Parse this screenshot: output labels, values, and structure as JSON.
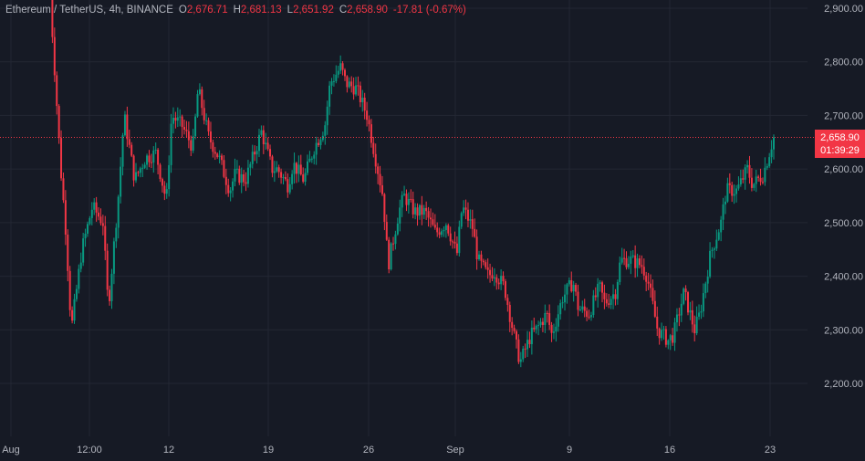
{
  "legend": {
    "symbol": "Ethereum / TetherUS, 4h, BINANCE",
    "open_label": "O",
    "open": "2,676.71",
    "high_label": "H",
    "high": "2,681.13",
    "low_label": "L",
    "low": "2,651.92",
    "close_label": "C",
    "close": "2,658.90",
    "change": "-17.81 (-0.67%)"
  },
  "price_badge": {
    "price": "2,658.90",
    "countdown": "01:39:29"
  },
  "colors": {
    "background": "#161a25",
    "grid": "#232733",
    "up": "#089981",
    "down": "#f23645",
    "text": "#b2b5be"
  },
  "chart_data": {
    "type": "candlestick",
    "interval": "4h",
    "ylim": [
      2150,
      2920
    ],
    "y_ticks": [
      "2,900.00",
      "2,800.00",
      "2,700.00",
      "2,600.00",
      "2,500.00",
      "2,400.00",
      "2,300.00",
      "2,200.00"
    ],
    "y_tick_values": [
      2900,
      2800,
      2700,
      2600,
      2500,
      2400,
      2300,
      2200
    ],
    "x_ticks": [
      "Aug",
      "12:00",
      "12",
      "19",
      "26",
      "Sep",
      "9",
      "16",
      "23"
    ],
    "last_price": 2658.9,
    "close_path": [
      [
        0,
        2920
      ],
      [
        2,
        2600
      ],
      [
        3,
        2480
      ],
      [
        4,
        2300
      ],
      [
        6,
        2450
      ],
      [
        8,
        2530
      ],
      [
        10,
        2500
      ],
      [
        11,
        2340
      ],
      [
        13,
        2560
      ],
      [
        14,
        2700
      ],
      [
        16,
        2580
      ],
      [
        18,
        2620
      ],
      [
        20,
        2630
      ],
      [
        22,
        2540
      ],
      [
        23,
        2700
      ],
      [
        25,
        2680
      ],
      [
        27,
        2640
      ],
      [
        28,
        2750
      ],
      [
        30,
        2660
      ],
      [
        32,
        2620
      ],
      [
        34,
        2560
      ],
      [
        35,
        2590
      ],
      [
        37,
        2580
      ],
      [
        39,
        2640
      ],
      [
        40,
        2670
      ],
      [
        42,
        2600
      ],
      [
        43,
        2600
      ],
      [
        45,
        2570
      ],
      [
        46,
        2610
      ],
      [
        48,
        2580
      ],
      [
        50,
        2640
      ],
      [
        52,
        2680
      ],
      [
        53,
        2760
      ],
      [
        55,
        2790
      ],
      [
        56,
        2760
      ],
      [
        58,
        2750
      ],
      [
        60,
        2700
      ],
      [
        61,
        2650
      ],
      [
        63,
        2550
      ],
      [
        64,
        2420
      ],
      [
        66,
        2520
      ],
      [
        67,
        2550
      ],
      [
        69,
        2520
      ],
      [
        71,
        2520
      ],
      [
        73,
        2480
      ],
      [
        75,
        2500
      ],
      [
        77,
        2440
      ],
      [
        78,
        2530
      ],
      [
        80,
        2490
      ],
      [
        81,
        2430
      ],
      [
        83,
        2400
      ],
      [
        84,
        2410
      ],
      [
        86,
        2380
      ],
      [
        88,
        2280
      ],
      [
        89,
        2240
      ],
      [
        91,
        2290
      ],
      [
        92,
        2300
      ],
      [
        94,
        2330
      ],
      [
        95,
        2290
      ],
      [
        97,
        2360
      ],
      [
        99,
        2390
      ],
      [
        100,
        2340
      ],
      [
        102,
        2330
      ],
      [
        104,
        2380
      ],
      [
        105,
        2350
      ],
      [
        107,
        2370
      ],
      [
        108,
        2430
      ],
      [
        110,
        2430
      ],
      [
        112,
        2420
      ],
      [
        113,
        2400
      ],
      [
        115,
        2300
      ],
      [
        117,
        2280
      ],
      [
        118,
        2290
      ],
      [
        120,
        2370
      ],
      [
        122,
        2300
      ],
      [
        123,
        2330
      ],
      [
        125,
        2440
      ],
      [
        127,
        2500
      ],
      [
        128,
        2560
      ],
      [
        130,
        2560
      ],
      [
        132,
        2600
      ],
      [
        133,
        2570
      ],
      [
        135,
        2590
      ],
      [
        137,
        2660
      ]
    ]
  }
}
